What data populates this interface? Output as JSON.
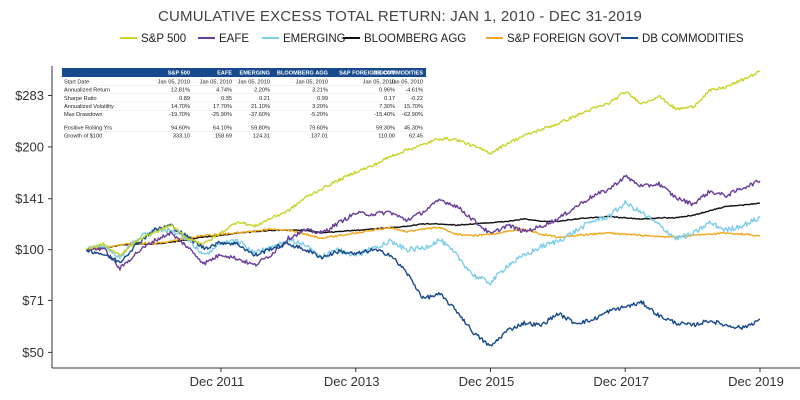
{
  "chart_data": {
    "type": "line",
    "title": "CUMULATIVE EXCESS TOTAL RETURN: JAN 1, 2010 - DEC 31-2019",
    "y_scale": "log",
    "ylim": [
      45,
      350
    ],
    "xlim": [
      "2010-01-05",
      "2019-12-31"
    ],
    "y_ticks": [
      {
        "value": 283,
        "label": "$283"
      },
      {
        "value": 200,
        "label": "$200"
      },
      {
        "value": 141,
        "label": "$141"
      },
      {
        "value": 100,
        "label": "$100"
      },
      {
        "value": 71,
        "label": "$71"
      },
      {
        "value": 50,
        "label": "$50"
      }
    ],
    "x_ticks": [
      {
        "value": "2011-12-31",
        "label": "Dec 2011"
      },
      {
        "value": "2013-12-31",
        "label": "Dec 2013"
      },
      {
        "value": "2015-12-31",
        "label": "Dec 2015"
      },
      {
        "value": "2017-12-31",
        "label": "Dec 2017"
      },
      {
        "value": "2019-12-31",
        "label": "Dec 2019"
      }
    ],
    "legend_position": "top",
    "x": [
      "2010-01",
      "2010-04",
      "2010-07",
      "2010-10",
      "2011-01",
      "2011-04",
      "2011-07",
      "2011-10",
      "2012-01",
      "2012-04",
      "2012-07",
      "2012-10",
      "2013-01",
      "2013-04",
      "2013-07",
      "2013-10",
      "2014-01",
      "2014-04",
      "2014-07",
      "2014-10",
      "2015-01",
      "2015-04",
      "2015-07",
      "2015-10",
      "2016-01",
      "2016-04",
      "2016-07",
      "2016-10",
      "2017-01",
      "2017-04",
      "2017-07",
      "2017-10",
      "2018-01",
      "2018-04",
      "2018-07",
      "2018-10",
      "2019-01",
      "2019-04",
      "2019-07",
      "2019-10",
      "2019-12"
    ],
    "series": [
      {
        "name": "S&P 500",
        "color": "#c8d42a",
        "values": [
          100,
          104,
          96,
          106,
          112,
          118,
          108,
          104,
          112,
          121,
          117,
          124,
          130,
          142,
          151,
          160,
          169,
          176,
          187,
          196,
          203,
          212,
          210,
          201,
          192,
          205,
          216,
          225,
          234,
          246,
          258,
          268,
          290,
          268,
          282,
          258,
          262,
          292,
          300,
          315,
          333
        ]
      },
      {
        "name": "EAFE",
        "color": "#6a3d9a",
        "values": [
          100,
          101,
          88,
          98,
          106,
          112,
          102,
          91,
          97,
          94,
          90,
          97,
          108,
          114,
          112,
          120,
          128,
          127,
          129,
          122,
          129,
          140,
          134,
          122,
          111,
          118,
          113,
          117,
          123,
          133,
          143,
          150,
          164,
          153,
          156,
          142,
          136,
          148,
          144,
          152,
          159
        ]
      },
      {
        "name": "EMERGING",
        "color": "#7fcdea",
        "values": [
          100,
          103,
          95,
          108,
          113,
          114,
          108,
          96,
          104,
          106,
          98,
          101,
          107,
          103,
          95,
          100,
          96,
          101,
          106,
          100,
          101,
          107,
          96,
          84,
          80,
          90,
          96,
          102,
          106,
          113,
          121,
          125,
          137,
          128,
          118,
          108,
          111,
          120,
          114,
          118,
          124
        ]
      },
      {
        "name": "BLOOMBERG AGG",
        "color": "#111111",
        "values": [
          100,
          101,
          103,
          104,
          104,
          105,
          107,
          109,
          110,
          112,
          113,
          114,
          114,
          114,
          112,
          113,
          114,
          115,
          116,
          117,
          119,
          119,
          118,
          119,
          120,
          121,
          123,
          121,
          121,
          123,
          124,
          125,
          124,
          123,
          124,
          124,
          126,
          130,
          134,
          135,
          137
        ]
      },
      {
        "name": "S&P FOREIGN GOVT",
        "color": "#f0a81c",
        "values": [
          100,
          101,
          103,
          105,
          104,
          106,
          108,
          110,
          111,
          112,
          113,
          115,
          114,
          111,
          108,
          110,
          112,
          114,
          116,
          113,
          115,
          116,
          111,
          110,
          111,
          113,
          115,
          111,
          109,
          110,
          111,
          112,
          111,
          110,
          109,
          109,
          110,
          111,
          112,
          111,
          110
        ]
      },
      {
        "name": "DB COMMODITIES",
        "color": "#174a8c",
        "values": [
          100,
          97,
          92,
          104,
          114,
          118,
          109,
          101,
          105,
          104,
          96,
          101,
          104,
          100,
          95,
          99,
          97,
          100,
          97,
          86,
          72,
          74,
          66,
          57,
          52,
          58,
          61,
          60,
          65,
          61,
          62,
          66,
          68,
          70,
          64,
          61,
          60,
          62,
          60,
          59,
          62.45
        ]
      }
    ]
  },
  "stats_table": {
    "headers": [
      "",
      "S&P 500",
      "EAFE",
      "EMERGING",
      "BLOOMBERG AGG",
      "S&P FOREIGN GOVT",
      "DB COMMODITIES"
    ],
    "rows": [
      [
        "Start Date",
        "Jan 05, 2010",
        "Jan 05, 2010",
        "Jan 05, 2010",
        "Jan 05, 2010",
        "Jan 05, 2010",
        "Jan 05, 2010"
      ],
      [
        "Annualized Return",
        "12.81%",
        "4.74%",
        "2.20%",
        "3.21%",
        "0.96%",
        "-4.61%"
      ],
      [
        "Sharpe Ratio",
        "0.89",
        "0.35",
        "0.21",
        "0.99",
        "0.17",
        "-0.22"
      ],
      [
        "Annualized Volatility",
        "14.70%",
        "17.70%",
        "21.10%",
        "3.20%",
        "7.30%",
        "15.70%"
      ],
      [
        "Max Drawdown",
        "-19.70%",
        "-25.90%",
        "-37.60%",
        "-5.20%",
        "-15.40%",
        "-62.90%"
      ],
      [
        "Positive Rolling Yrs",
        "94.60%",
        "64.10%",
        "59.80%",
        "79.60%",
        "59.30%",
        "45.30%"
      ],
      [
        "Growth of $100",
        "333.10",
        "158.69",
        "124.31",
        "137.01",
        "110.00",
        "62.45"
      ]
    ]
  }
}
